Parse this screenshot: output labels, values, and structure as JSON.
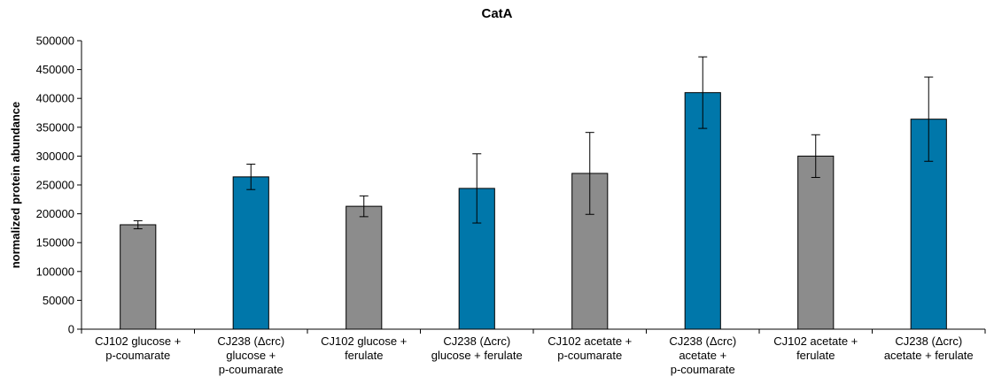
{
  "chart_data": {
    "type": "bar",
    "title": "CatA",
    "xlabel": "",
    "ylabel": "normalized protein abundance",
    "ylim": [
      0,
      500000
    ],
    "yticks": [
      "0",
      "50000",
      "100000",
      "150000",
      "200000",
      "250000",
      "300000",
      "350000",
      "400000",
      "450000",
      "500000"
    ],
    "grid": false,
    "categories": [
      [
        "CJ102 glucose +",
        "p-coumarate"
      ],
      [
        "CJ238 (Δcrc)",
        "glucose +",
        "p-coumarate"
      ],
      [
        "CJ102 glucose +",
        "ferulate"
      ],
      [
        "CJ238 (Δcrc)",
        "glucose + ferulate"
      ],
      [
        "CJ102 acetate +",
        "p-coumarate"
      ],
      [
        "CJ238 (Δcrc)",
        "acetate +",
        "p-coumarate"
      ],
      [
        "CJ102 acetate +",
        "ferulate"
      ],
      [
        "CJ238 (Δcrc)",
        "acetate + ferulate"
      ]
    ],
    "values": [
      181000,
      264000,
      213000,
      244000,
      270000,
      410000,
      300000,
      364000
    ],
    "errors": [
      7000,
      22000,
      18000,
      60000,
      71000,
      62000,
      37000,
      73000
    ],
    "colors": [
      "#8c8c8c",
      "#0077aa",
      "#8c8c8c",
      "#0077aa",
      "#8c8c8c",
      "#0077aa",
      "#8c8c8c",
      "#0077aa"
    ]
  }
}
